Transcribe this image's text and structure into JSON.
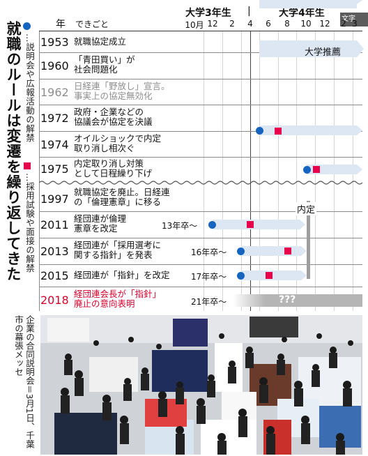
{
  "title": "就職のルールは変遷を繰り返してきた",
  "legend": {
    "blue": "…説明会や広報活動の解禁",
    "red": "…採用試験や面接の解禁"
  },
  "header": {
    "year_col": "年",
    "event_col": "できごと",
    "grade3": "大学3年生",
    "grade4": "大学4年生",
    "months": [
      "10月",
      "12",
      "2",
      "4",
      "6",
      "8",
      "10",
      "12",
      "2",
      "3"
    ],
    "corner_badge": "文字"
  },
  "rows": [
    {
      "year": "1953",
      "event": [
        "就職協定成立"
      ]
    },
    {
      "year": "1960",
      "event": [
        "「青田買い」が",
        "社会問題化"
      ],
      "note": "大学推薦"
    },
    {
      "year": "1962",
      "event": [
        "日経連「野放し」宣言。",
        "事実上の協定無効化"
      ]
    },
    {
      "year": "1972",
      "event": [
        "政府・企業などの",
        "協議会が協定を決議"
      ]
    },
    {
      "year": "1974",
      "event": [
        "オイルショックで内定",
        "取り消し相次ぐ"
      ]
    },
    {
      "year": "1975",
      "event": [
        "内定取り消し対策",
        "として日程繰り下げ"
      ]
    },
    {
      "year": "1997",
      "event": [
        "就職協定を廃止。日経連",
        "の「倫理憲章」に移る"
      ]
    },
    {
      "year": "2011",
      "event": [
        "経団連が倫理",
        "憲章を改定"
      ],
      "cohort": "13年卒～"
    },
    {
      "year": "2013",
      "event": [
        "経団連が「採用選考に",
        "関する指針」を発表"
      ],
      "cohort": "16年卒～"
    },
    {
      "year": "2015",
      "event": [
        "経団連が「指針」を改定"
      ],
      "cohort": "17年卒～"
    },
    {
      "year": "2018",
      "event": [
        "経団連会長が「指針」",
        "廃止の意向表明"
      ],
      "cohort": "21年卒～",
      "unknown": "???"
    }
  ],
  "naitei": "内定",
  "caption": [
    "企業の合同説明会＝3月1日、",
    "千葉市の幕張メッセ"
  ],
  "colors": {
    "blue": "#1565c0",
    "red": "#e8004c",
    "bar": "#dce7f3"
  }
}
